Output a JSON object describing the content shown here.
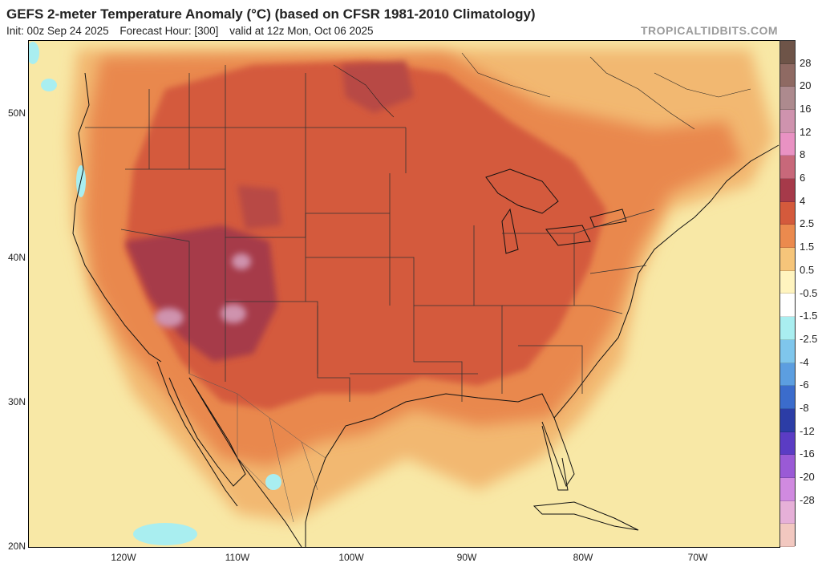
{
  "header": {
    "title": "GEFS 2-meter Temperature Anomaly (°C) (based on CFSR 1981-2010 Climatology)",
    "init": "Init: 00z Sep 24 2025",
    "forecast_hour": "Forecast Hour: [300]",
    "valid": "valid at 12z Mon, Oct 06 2025",
    "watermark": "TROPICALTIDBITS.COM"
  },
  "axes": {
    "latitudes": [
      "50N",
      "40N",
      "30N",
      "20N"
    ],
    "longitudes": [
      "120W",
      "110W",
      "100W",
      "90W",
      "80W",
      "70W"
    ]
  },
  "colorbar": {
    "labels": [
      "28",
      "20",
      "16",
      "12",
      "8",
      "6",
      "4",
      "2.5",
      "1.5",
      "0.5",
      "-0.5",
      "-1.5",
      "-2.5",
      "-4",
      "-6",
      "-8",
      "-12",
      "-16",
      "-20",
      "-28"
    ],
    "colors": [
      "#6e5448",
      "#8f6a63",
      "#ad8a8e",
      "#cf93ae",
      "#e992c3",
      "#c8687a",
      "#a63a4a",
      "#d45a3c",
      "#eb8a4e",
      "#f6c57a",
      "#fff4bf",
      "#ffffff",
      "#a9eef0",
      "#7fc6ec",
      "#5c9ee0",
      "#3b6ccc",
      "#2c3da6",
      "#5b3cc4",
      "#9a5ad6",
      "#d08ae0",
      "#e6b0d8",
      "#f2c8c0"
    ]
  }
}
